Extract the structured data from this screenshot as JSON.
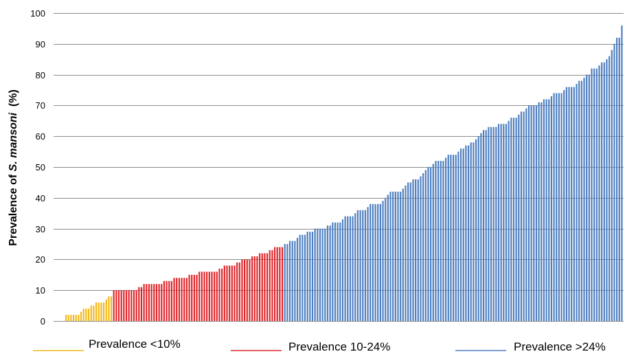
{
  "chart_data": {
    "type": "bar",
    "title": "",
    "xlabel": "",
    "ylabel": {
      "prefix": "Prevalence of ",
      "species": "S. mansoni",
      "suffix": "  (%)"
    },
    "ylim": [
      0,
      100
    ],
    "yticks": [
      "0",
      "10",
      "20",
      "30",
      "40",
      "50",
      "60",
      "70",
      "80",
      "90",
      "100"
    ],
    "grid": true,
    "legend_placement": "bottom",
    "series": [
      {
        "name": "Prevalence <10%",
        "color": "#F2B81A",
        "values": [
          2,
          2,
          2,
          2,
          2,
          2,
          3,
          4,
          4,
          4,
          5,
          5,
          6,
          6,
          6,
          6,
          7,
          8,
          8
        ]
      },
      {
        "name": "Prevalence 10-24%",
        "color": "#E0262B",
        "values": [
          10,
          10,
          10,
          10,
          10,
          10,
          10,
          10,
          10,
          10,
          11,
          11,
          12,
          12,
          12,
          12,
          12,
          12,
          12,
          12,
          13,
          13,
          13,
          13,
          14,
          14,
          14,
          14,
          14,
          14,
          15,
          15,
          15,
          15,
          16,
          16,
          16,
          16,
          16,
          16,
          16,
          16,
          17,
          17,
          18,
          18,
          18,
          18,
          18,
          19,
          19,
          20,
          20,
          20,
          20,
          21,
          21,
          21,
          22,
          22,
          22,
          22,
          23,
          23,
          24,
          24,
          24,
          24
        ]
      },
      {
        "name": "Prevalence >24%",
        "color": "#4F7FC0",
        "values": [
          25,
          25,
          26,
          26,
          26,
          27,
          28,
          28,
          28,
          29,
          29,
          29,
          30,
          30,
          30,
          30,
          30,
          31,
          31,
          32,
          32,
          32,
          32,
          33,
          34,
          34,
          34,
          34,
          35,
          36,
          36,
          36,
          36,
          37,
          38,
          38,
          38,
          38,
          38,
          39,
          40,
          41,
          42,
          42,
          42,
          42,
          42,
          43,
          44,
          45,
          45,
          46,
          46,
          46,
          47,
          48,
          49,
          50,
          50,
          51,
          52,
          52,
          52,
          52,
          53,
          54,
          54,
          54,
          54,
          55,
          56,
          56,
          57,
          57,
          58,
          58,
          59,
          60,
          61,
          62,
          62,
          63,
          63,
          63,
          63,
          64,
          64,
          64,
          64,
          65,
          66,
          66,
          66,
          67,
          68,
          68,
          69,
          70,
          70,
          70,
          70,
          71,
          71,
          72,
          72,
          72,
          73,
          74,
          74,
          74,
          74,
          75,
          76,
          76,
          76,
          76,
          77,
          78,
          78,
          79,
          80,
          80,
          82,
          82,
          82,
          83,
          84,
          84,
          85,
          86,
          88,
          90,
          92,
          92,
          96
        ]
      }
    ]
  }
}
